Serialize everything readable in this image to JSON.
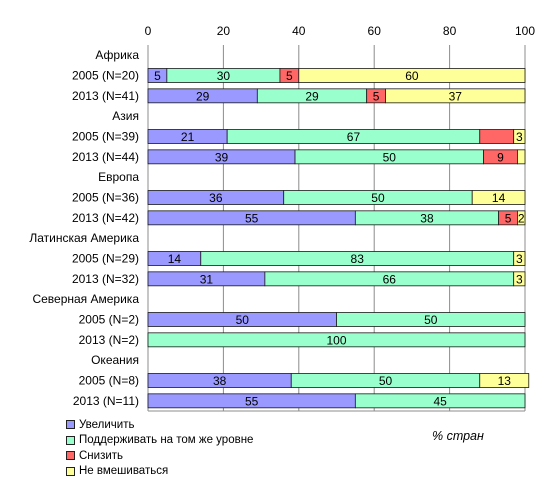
{
  "chart_data": {
    "type": "bar",
    "orientation": "horizontal",
    "stacked": true,
    "xlim": [
      0,
      100
    ],
    "x_ticks": [
      "0",
      "20",
      "40",
      "60",
      "80",
      "100"
    ],
    "x_unit_label": "% стран",
    "grid": true,
    "legend_position": "bottom-left",
    "series": [
      {
        "name": "Увеличить",
        "color": "#9999ff"
      },
      {
        "name": "Поддерживать на том же уровне",
        "color": "#99ffcc"
      },
      {
        "name": "Снизить",
        "color": "#ff6666"
      },
      {
        "name": "Не вмешиваться",
        "color": "#ffff99"
      }
    ],
    "groups": [
      {
        "name": "Африка",
        "rows": [
          {
            "label": "2005 (N=20)",
            "values": [
              5,
              30,
              5,
              60
            ]
          },
          {
            "label": "2013 (N=41)",
            "values": [
              29,
              29,
              5,
              37
            ]
          }
        ]
      },
      {
        "name": "Азия",
        "rows": [
          {
            "label": "2005 (N=39)",
            "values": [
              21,
              67,
              9,
              3
            ],
            "data_labels": [
              "21",
              "67",
              "",
              "3"
            ]
          },
          {
            "label": "2013 (N=44)",
            "values": [
              39,
              50,
              9,
              2
            ],
            "data_labels": [
              "39",
              "50",
              "9",
              ""
            ]
          }
        ]
      },
      {
        "name": "Европа",
        "rows": [
          {
            "label": "2005 (N=36)",
            "values": [
              36,
              50,
              0,
              14
            ]
          },
          {
            "label": "2013 (N=42)",
            "values": [
              55,
              38,
              5,
              2
            ]
          }
        ]
      },
      {
        "name": "Латинская Америка",
        "rows": [
          {
            "label": "2005 (N=29)",
            "values": [
              14,
              83,
              0,
              3
            ]
          },
          {
            "label": "2013 (N=32)",
            "values": [
              31,
              66,
              0,
              3
            ]
          }
        ]
      },
      {
        "name": "Северная Америка",
        "rows": [
          {
            "label": "2005 (N=2)",
            "values": [
              50,
              50,
              0,
              0
            ]
          },
          {
            "label": "2013 (N=2)",
            "values": [
              0,
              100,
              0,
              0
            ]
          }
        ]
      },
      {
        "name": "Океания",
        "rows": [
          {
            "label": "2005 (N=8)",
            "values": [
              38,
              50,
              0,
              13
            ]
          },
          {
            "label": "2013 (N=11)",
            "values": [
              55,
              45,
              0,
              0
            ]
          }
        ]
      }
    ]
  }
}
